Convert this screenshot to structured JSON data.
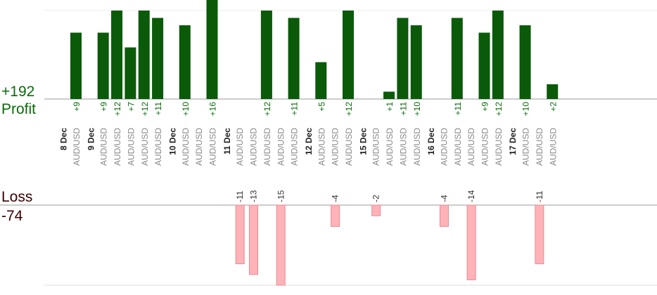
{
  "chart_data": {
    "type": "bar",
    "profit": {
      "label": "Profit",
      "total": "+192",
      "color": "#0a5a0a",
      "bars": [
        {
          "value": 9,
          "label": "+9"
        },
        {
          "value": 9,
          "label": "+9"
        },
        {
          "value": 12,
          "label": "+12"
        },
        {
          "value": 7,
          "label": "+7"
        },
        {
          "value": 12,
          "label": "+12"
        },
        {
          "value": 11,
          "label": "+11"
        },
        {
          "value": 10,
          "label": "+10"
        },
        {
          "value": 16,
          "label": "+16"
        },
        {
          "value": 12,
          "label": "+12"
        },
        {
          "value": 11,
          "label": "+11"
        },
        {
          "value": 5,
          "label": "+5"
        },
        {
          "value": 12,
          "label": "+12"
        },
        {
          "value": 1,
          "label": "+1"
        },
        {
          "value": 11,
          "label": "+11"
        },
        {
          "value": 10,
          "label": "+10"
        },
        {
          "value": 11,
          "label": "+11"
        },
        {
          "value": 9,
          "label": "+9"
        },
        {
          "value": 12,
          "label": "+12"
        },
        {
          "value": 10,
          "label": "+10"
        },
        {
          "value": 2,
          "label": "+2"
        }
      ]
    },
    "loss": {
      "label": "Loss",
      "total": "-74",
      "color": "#ffb3b8",
      "bars": [
        {
          "value": -11,
          "label": "-11"
        },
        {
          "value": -13,
          "label": "-13"
        },
        {
          "value": -15,
          "label": "-15"
        },
        {
          "value": -4,
          "label": "-4"
        },
        {
          "value": -2,
          "label": "-2"
        },
        {
          "value": -4,
          "label": "-4"
        },
        {
          "value": -14,
          "label": "-14"
        },
        {
          "value": -11,
          "label": "-11"
        }
      ]
    },
    "dates": [
      "8 Dec",
      "9 Dec",
      "10 Dec",
      "11 Dec",
      "12 Dec",
      "15 Dec",
      "16 Dec",
      "17 Dec"
    ],
    "trades": [
      {
        "date": 0,
        "symbol": "AUD/USD",
        "result": "p",
        "bar": 0
      },
      {
        "date": 1,
        "symbol": "AUD/USD",
        "result": "p",
        "bar": 1
      },
      {
        "date": 1,
        "symbol": "AUD/USD",
        "result": "p",
        "bar": 2
      },
      {
        "date": 1,
        "symbol": "AUD/USD",
        "result": "p",
        "bar": 3
      },
      {
        "date": 1,
        "symbol": "AUD/USD",
        "result": "p",
        "bar": 4
      },
      {
        "date": 1,
        "symbol": "AUD/USD",
        "result": "p",
        "bar": 5
      },
      {
        "date": 2,
        "symbol": "AUD/USD",
        "result": "p",
        "bar": 6
      },
      {
        "date": 2,
        "symbol": "AUD/USD",
        "result": "n"
      },
      {
        "date": 2,
        "symbol": "AUD/USD",
        "result": "p",
        "bar": 7
      },
      {
        "date": 3,
        "symbol": "AUD/USD",
        "result": "l",
        "bar": 0
      },
      {
        "date": 3,
        "symbol": "AUD/USD",
        "result": "l",
        "bar": 1
      },
      {
        "date": 3,
        "symbol": "AUD/USD",
        "result": "p",
        "bar": 8
      },
      {
        "date": 3,
        "symbol": "AUD/USD",
        "result": "l",
        "bar": 2
      },
      {
        "date": 3,
        "symbol": "AUD/USD",
        "result": "p",
        "bar": 9
      },
      {
        "date": 4,
        "symbol": "AUD/USD",
        "result": "p",
        "bar": 10
      },
      {
        "date": 4,
        "symbol": "AUD/USD",
        "result": "l",
        "bar": 3
      },
      {
        "date": 4,
        "symbol": "AUD/USD",
        "result": "p",
        "bar": 11
      },
      {
        "date": 5,
        "symbol": "AUD/USD",
        "result": "l",
        "bar": 4
      },
      {
        "date": 5,
        "symbol": "AUD/USD",
        "result": "p",
        "bar": 12
      },
      {
        "date": 5,
        "symbol": "AUD/USD",
        "result": "p",
        "bar": 13
      },
      {
        "date": 5,
        "symbol": "AUD/USD",
        "result": "p",
        "bar": 14
      },
      {
        "date": 6,
        "symbol": "AUD/USD",
        "result": "l",
        "bar": 5
      },
      {
        "date": 6,
        "symbol": "AUD/USD",
        "result": "p",
        "bar": 15
      },
      {
        "date": 6,
        "symbol": "AUD/USD",
        "result": "l",
        "bar": 6
      },
      {
        "date": 6,
        "symbol": "AUD/USD",
        "result": "p",
        "bar": 16
      },
      {
        "date": 6,
        "symbol": "AUD/USD",
        "result": "p",
        "bar": 17
      },
      {
        "date": 7,
        "symbol": "AUD/USD",
        "result": "p",
        "bar": 18
      },
      {
        "date": 7,
        "symbol": "AUD/USD",
        "result": "l",
        "bar": 7
      },
      {
        "date": 7,
        "symbol": "AUD/USD",
        "result": "p",
        "bar": 19
      }
    ]
  }
}
